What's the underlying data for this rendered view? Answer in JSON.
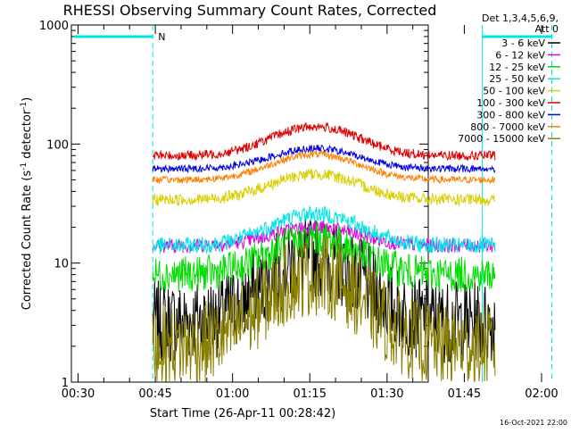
{
  "chart_data": {
    "type": "line",
    "title": "RHESSI Observing Summary Count Rates, Corrected",
    "xlabel": "Start Time (26-Apr-11 00:28:42)",
    "ylabel_main": "Corrected Count Rate (s",
    "ylabel_sup1": "-1",
    "ylabel_mid": " detector",
    "ylabel_sup2": "-1",
    "ylabel_end": ")",
    "yscale": "log",
    "ylim": [
      1,
      1000
    ],
    "xlim_minutes": [
      28.7,
      98
    ],
    "x_ticks": [
      {
        "m": 30,
        "label": "00:30"
      },
      {
        "m": 45,
        "label": "00:45"
      },
      {
        "m": 60,
        "label": "01:00"
      },
      {
        "m": 75,
        "label": "01:15"
      },
      {
        "m": 90,
        "label": "01:30"
      },
      {
        "m": 105,
        "label": "01:45"
      },
      {
        "m": 120,
        "label": "02:00"
      }
    ],
    "y_ticks": [
      {
        "v": 1,
        "label": "1"
      },
      {
        "v": 10,
        "label": "10"
      },
      {
        "v": 100,
        "label": "100"
      },
      {
        "v": 1000,
        "label": "1000"
      }
    ],
    "legend_header": [
      "Det 1,3,4,5,6,9,",
      "Att 0"
    ],
    "series": [
      {
        "name": "3 - 6 keV",
        "color": "#000000",
        "base": 3.2,
        "peak": 11,
        "noise": 0.35
      },
      {
        "name": "6 - 12 keV",
        "color": "#e000e0",
        "base": 14,
        "peak": 20,
        "noise": 0.06
      },
      {
        "name": "12 - 25 keV",
        "color": "#00dd00",
        "base": 8,
        "peak": 16,
        "noise": 0.15
      },
      {
        "name": "25 - 50 keV",
        "color": "#00e6e6",
        "base": 14,
        "peak": 26,
        "noise": 0.07
      },
      {
        "name": "50 - 100 keV",
        "color": "#d8d000",
        "base": 34,
        "peak": 56,
        "noise": 0.05
      },
      {
        "name": "100 - 300 keV",
        "color": "#e00000",
        "base": 80,
        "peak": 140,
        "noise": 0.04
      },
      {
        "name": "300 - 800 keV",
        "color": "#0000e0",
        "base": 62,
        "peak": 92,
        "noise": 0.03
      },
      {
        "name": "800 - 7000 keV",
        "color": "#ff8000",
        "base": 50,
        "peak": 82,
        "noise": 0.03
      },
      {
        "name": "7000 - 15000 keV",
        "color": "#8a8000",
        "base": 2.0,
        "peak": 8,
        "noise": 0.35
      }
    ],
    "flags_label": "N",
    "flags_color": "#00e6e6",
    "footer": "16-Oct-2021 22:00"
  }
}
